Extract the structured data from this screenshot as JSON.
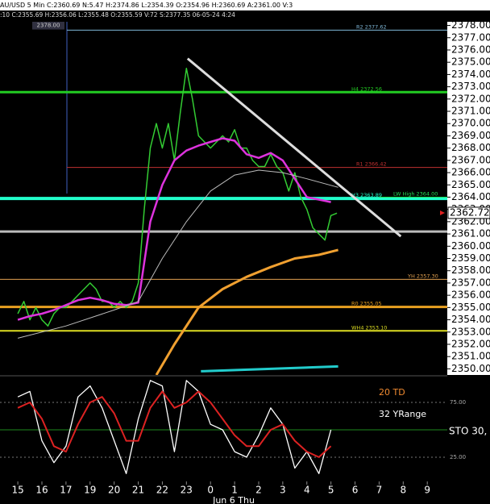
{
  "header": {
    "line1": "AU/USD 5 Min C:2360.69 N:5.47 H:2374.86 L:2354.39 O:2354.96 H:2360.69 A:2361.00 V:3",
    "line2": ":10 C:2355.69 H:2356.06 L:2355.48 O:2355.59 V:72 S:2377.35 06-05-24 4:24"
  },
  "chart_data": [
    {
      "type": "line",
      "xlim": [
        -0.74,
        17.83
      ],
      "ylim": [
        2349.5,
        2378.3
      ],
      "yticks": [
        {
          "value": 2350,
          "label": "2350.00"
        },
        {
          "value": 2351,
          "label": "2351.00"
        },
        {
          "value": 2352,
          "label": "2352.00"
        },
        {
          "value": 2353,
          "label": "2353.00"
        },
        {
          "value": 2354,
          "label": "2354.00"
        },
        {
          "value": 2355,
          "label": "2355.00"
        },
        {
          "value": 2356,
          "label": "2356.00"
        },
        {
          "value": 2357,
          "label": "2357.00"
        },
        {
          "value": 2358,
          "label": "2358.00"
        },
        {
          "value": 2359,
          "label": "2359.00"
        },
        {
          "value": 2360,
          "label": "2360.00"
        },
        {
          "value": 2361,
          "label": "2361.00"
        },
        {
          "value": 2362,
          "label": "2362.00"
        },
        {
          "value": 2363,
          "label": "2363.00"
        },
        {
          "value": 2364,
          "label": "2364.00"
        },
        {
          "value": 2365,
          "label": "2365.00"
        },
        {
          "value": 2366,
          "label": "2366.00"
        },
        {
          "value": 2367,
          "label": "2367.00"
        },
        {
          "value": 2368,
          "label": "2368.00"
        },
        {
          "value": 2369,
          "label": "2369.00"
        },
        {
          "value": 2370,
          "label": "2370.00"
        },
        {
          "value": 2371,
          "label": "2371.00"
        },
        {
          "value": 2372,
          "label": "2372.00"
        },
        {
          "value": 2373,
          "label": "2373.00"
        },
        {
          "value": 2374,
          "label": "2374.00"
        },
        {
          "value": 2375,
          "label": "2375.00"
        },
        {
          "value": 2376,
          "label": "2376.00"
        },
        {
          "value": 2377,
          "label": "2377.00"
        },
        {
          "value": 2378,
          "label": "2378.00"
        }
      ],
      "series": [
        {
          "color": "#33cc33",
          "width": 1.5,
          "x": [
            0,
            0.25,
            0.5,
            0.75,
            1,
            1.25,
            1.5,
            1.75,
            2,
            2.25,
            2.5,
            2.75,
            3,
            3.25,
            3.5,
            3.75,
            4,
            4.25,
            4.5,
            4.75,
            5,
            5.25,
            5.5,
            5.75,
            6,
            6.25,
            6.5,
            6.75,
            7,
            7.25,
            7.5,
            7.75,
            8,
            8.25,
            8.5,
            8.75,
            9,
            9.25,
            9.5,
            9.75,
            10,
            10.25,
            10.5,
            10.75,
            11,
            11.25,
            11.5,
            11.75,
            12,
            12.25,
            12.5,
            12.75,
            13,
            13.25
          ],
          "values": [
            2354.5,
            2355.5,
            2354,
            2355,
            2354,
            2353.5,
            2354.5,
            2355,
            2355,
            2355.5,
            2356,
            2356.5,
            2357,
            2356.5,
            2355.5,
            2355.5,
            2355,
            2355.5,
            2355,
            2355.5,
            2357,
            2363,
            2368,
            2370,
            2368,
            2370,
            2367,
            2371,
            2374.5,
            2372,
            2369,
            2368.5,
            2368,
            2368.5,
            2369,
            2368.5,
            2369.5,
            2368,
            2368,
            2367,
            2366.5,
            2366.5,
            2367.5,
            2366.5,
            2366,
            2364.5,
            2366,
            2364,
            2363,
            2361.5,
            2361,
            2360.5,
            2362.5,
            2362.7
          ]
        },
        {
          "color": "#dd33dd",
          "width": 2.5,
          "x": [
            0,
            0.5,
            1,
            1.5,
            2,
            2.5,
            3,
            3.5,
            4,
            4.5,
            5,
            5.5,
            6,
            6.5,
            7,
            7.5,
            8,
            8.5,
            9,
            9.5,
            10,
            10.5,
            11,
            11.5,
            12,
            12.5,
            13
          ],
          "values": [
            2354,
            2354.3,
            2354.5,
            2354.8,
            2355.2,
            2355.6,
            2355.8,
            2355.6,
            2355.3,
            2355.2,
            2355.4,
            2362,
            2365,
            2367,
            2367.8,
            2368.2,
            2368.5,
            2368.8,
            2368.6,
            2367.5,
            2367.2,
            2367.6,
            2367,
            2365.5,
            2364,
            2363.8,
            2363.6
          ]
        },
        {
          "color": "#bbbbbb",
          "width": 1,
          "x": [
            0,
            2,
            4,
            5,
            6,
            7,
            8,
            9,
            10,
            11,
            12,
            13.3
          ],
          "values": [
            2352.5,
            2353.5,
            2354.8,
            2355.5,
            2359,
            2362,
            2364.5,
            2365.8,
            2366.2,
            2366,
            2365.5,
            2364.8
          ]
        },
        {
          "color": "#f0a030",
          "width": 3,
          "x": [
            5.75,
            6.5,
            7.5,
            8.5,
            9.5,
            10.5,
            11.5,
            12.5,
            13.3
          ],
          "values": [
            2349.5,
            2352,
            2355,
            2356.5,
            2357.5,
            2358.3,
            2359,
            2359.3,
            2359.7
          ]
        },
        {
          "color": "#22cccc",
          "width": 3,
          "x": [
            7.6,
            13.3
          ],
          "values": [
            2349.8,
            2350.2
          ]
        }
      ],
      "levels": [
        {
          "label": "R2 2377.62",
          "value": 2377.62,
          "color": "#7fb8d8",
          "width": 1
        },
        {
          "label": "H4 2372.56",
          "value": 2372.56,
          "color": "#22cc22",
          "width": 3
        },
        {
          "label": "R1 2366.42",
          "value": 2366.42,
          "color": "#c03030",
          "width": 1
        },
        {
          "label": "H3 2363.89",
          "value": 2363.89,
          "color": "#22ffcc",
          "width": 4
        },
        {
          "label": "LW High 2364.00",
          "value": 2364.0,
          "color": "#22dd55",
          "width": 1
        },
        {
          "label": "YH 2357.30",
          "value": 2357.3,
          "color": "#e0a050",
          "width": 1
        },
        {
          "label": "R0 2355.05",
          "value": 2355.05,
          "color": "#e8a020",
          "width": 3
        },
        {
          "label": "WH4 2353.10",
          "value": 2353.1,
          "color": "#dddd22",
          "width": 2
        },
        {
          "value": 2361.2,
          "color": "#bbbbbb",
          "width": 3
        }
      ],
      "cursor_price": {
        "value": 2378,
        "label": "2378.00"
      },
      "trendline": {
        "x": [
          7.05,
          15.9
        ],
        "values": [
          2375.3,
          2360.8
        ],
        "color": "#dddddd"
      },
      "last_price": 2362.72
    },
    {
      "type": "line",
      "xlim": [
        -0.74,
        17.83
      ],
      "ylim": [
        2.9,
        98.5
      ],
      "yticks": [
        {
          "value": 75,
          "label": "75.00"
        },
        {
          "value": 25,
          "label": "25.00"
        }
      ],
      "reference_line": 50,
      "xticks": [
        {
          "value": 0,
          "label": "15"
        },
        {
          "value": 1,
          "label": "16"
        },
        {
          "value": 2,
          "label": "17"
        },
        {
          "value": 3,
          "label": "19"
        },
        {
          "value": 4,
          "label": "20"
        },
        {
          "value": 5,
          "label": "21"
        },
        {
          "value": 6,
          "label": "22"
        },
        {
          "value": 7,
          "label": "23"
        },
        {
          "value": 8,
          "label": "0"
        },
        {
          "value": 9,
          "label": "1"
        },
        {
          "value": 10,
          "label": "2"
        },
        {
          "value": 11,
          "label": "3"
        },
        {
          "value": 12,
          "label": "4"
        },
        {
          "value": 13,
          "label": "5"
        },
        {
          "value": 14,
          "label": "6"
        },
        {
          "value": 15,
          "label": "7"
        },
        {
          "value": 16,
          "label": "8"
        },
        {
          "value": 17,
          "label": "9"
        }
      ],
      "xlabel": "Jun 6 Thu",
      "annotations": [
        "20 TD",
        "32 YRange",
        "STO 30,"
      ],
      "series": [
        {
          "color": "#ffffff",
          "width": 1.3,
          "x": [
            0,
            0.5,
            1,
            1.5,
            2,
            2.5,
            3,
            3.5,
            4,
            4.5,
            5,
            5.5,
            6,
            6.5,
            7,
            7.5,
            8,
            8.5,
            9,
            9.5,
            10,
            10.5,
            11,
            11.5,
            12,
            12.5,
            13
          ],
          "values": [
            80,
            85,
            40,
            20,
            35,
            80,
            90,
            70,
            40,
            10,
            60,
            95,
            90,
            30,
            95,
            85,
            55,
            50,
            30,
            25,
            45,
            70,
            55,
            15,
            30,
            10,
            50
          ]
        },
        {
          "color": "#dd2222",
          "width": 2,
          "x": [
            0,
            0.5,
            1,
            1.5,
            2,
            2.5,
            3,
            3.5,
            4,
            4.5,
            5,
            5.5,
            6,
            6.5,
            7,
            7.5,
            8,
            8.5,
            9,
            9.5,
            10,
            10.5,
            11,
            11.5,
            12,
            12.5,
            13
          ],
          "values": [
            70,
            75,
            60,
            35,
            30,
            55,
            75,
            80,
            65,
            40,
            40,
            70,
            85,
            70,
            75,
            85,
            75,
            60,
            45,
            35,
            35,
            50,
            55,
            40,
            30,
            25,
            35
          ]
        }
      ]
    }
  ]
}
